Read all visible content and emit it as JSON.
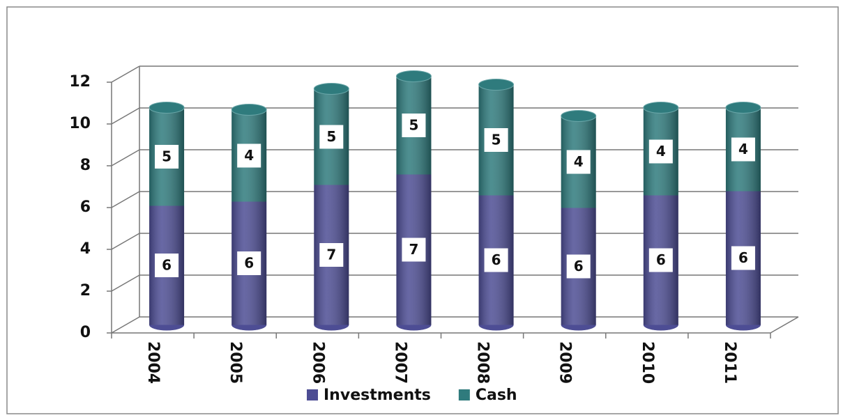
{
  "chart_data": {
    "type": "bar3d_stacked",
    "categories": [
      "2004",
      "2005",
      "2006",
      "2007",
      "2008",
      "2009",
      "2010",
      "2011"
    ],
    "series": [
      {
        "name": "Investments",
        "color": "#4d4d94",
        "values": [
          5.7,
          5.9,
          6.7,
          7.2,
          6.2,
          5.6,
          6.2,
          6.4
        ],
        "value_labels": [
          "6",
          "6",
          "7",
          "7",
          "6",
          "6",
          "6",
          "6"
        ]
      },
      {
        "name": "Cash",
        "color": "#2f7b7d",
        "values": [
          4.7,
          4.4,
          4.6,
          4.7,
          5.3,
          4.4,
          4.2,
          4.0
        ],
        "value_labels": [
          "5",
          "4",
          "5",
          "5",
          "5",
          "4",
          "4",
          "4"
        ]
      }
    ],
    "ylim": [
      0,
      12
    ],
    "yticks": [
      0,
      2,
      4,
      6,
      8,
      10,
      12
    ],
    "grid": true,
    "legend": "bottom"
  }
}
